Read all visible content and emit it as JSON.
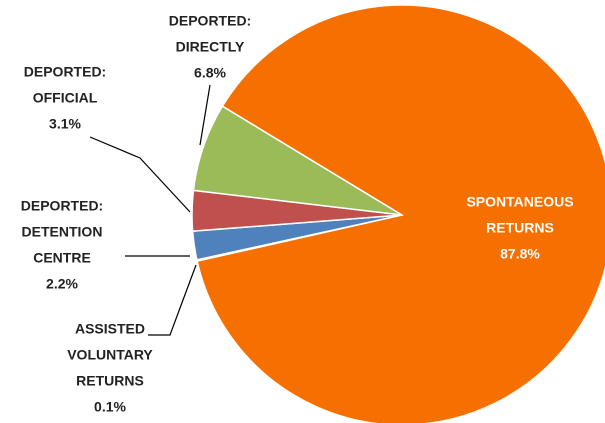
{
  "chart_data": {
    "type": "pie",
    "categories": [
      [
        "ASSISTED",
        "VOLUNTARY",
        "RETURNS"
      ],
      [
        "DEPORTED:",
        "DETENTION",
        "CENTRE"
      ],
      [
        "DEPORTED:",
        "OFFICIAL"
      ],
      [
        "DEPORTED:",
        "DIRECTLY"
      ],
      [
        "SPONTANEOUS",
        "RETURNS"
      ]
    ],
    "values": [
      0.1,
      2.2,
      3.1,
      6.8,
      87.8
    ],
    "value_labels": [
      "0.1%",
      "2.2%",
      "3.1%",
      "6.8%",
      "87.8%"
    ],
    "colors": [
      "#8064a2",
      "#4f81bd",
      "#c0504d",
      "#9bbb59",
      "#f57000"
    ]
  }
}
